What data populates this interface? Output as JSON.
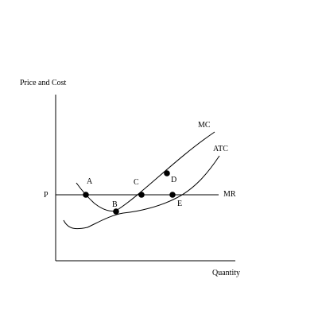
{
  "diagram": {
    "y_axis_label": "Price and Cost",
    "x_axis_label": "Quantity",
    "price_label": "P",
    "curves": {
      "mc": "MC",
      "atc": "ATC",
      "mr": "MR"
    },
    "points": {
      "a": "A",
      "b": "B",
      "c": "C",
      "d": "D",
      "e": "E"
    },
    "colors": {
      "line": "#000000",
      "background": "#ffffff"
    }
  }
}
